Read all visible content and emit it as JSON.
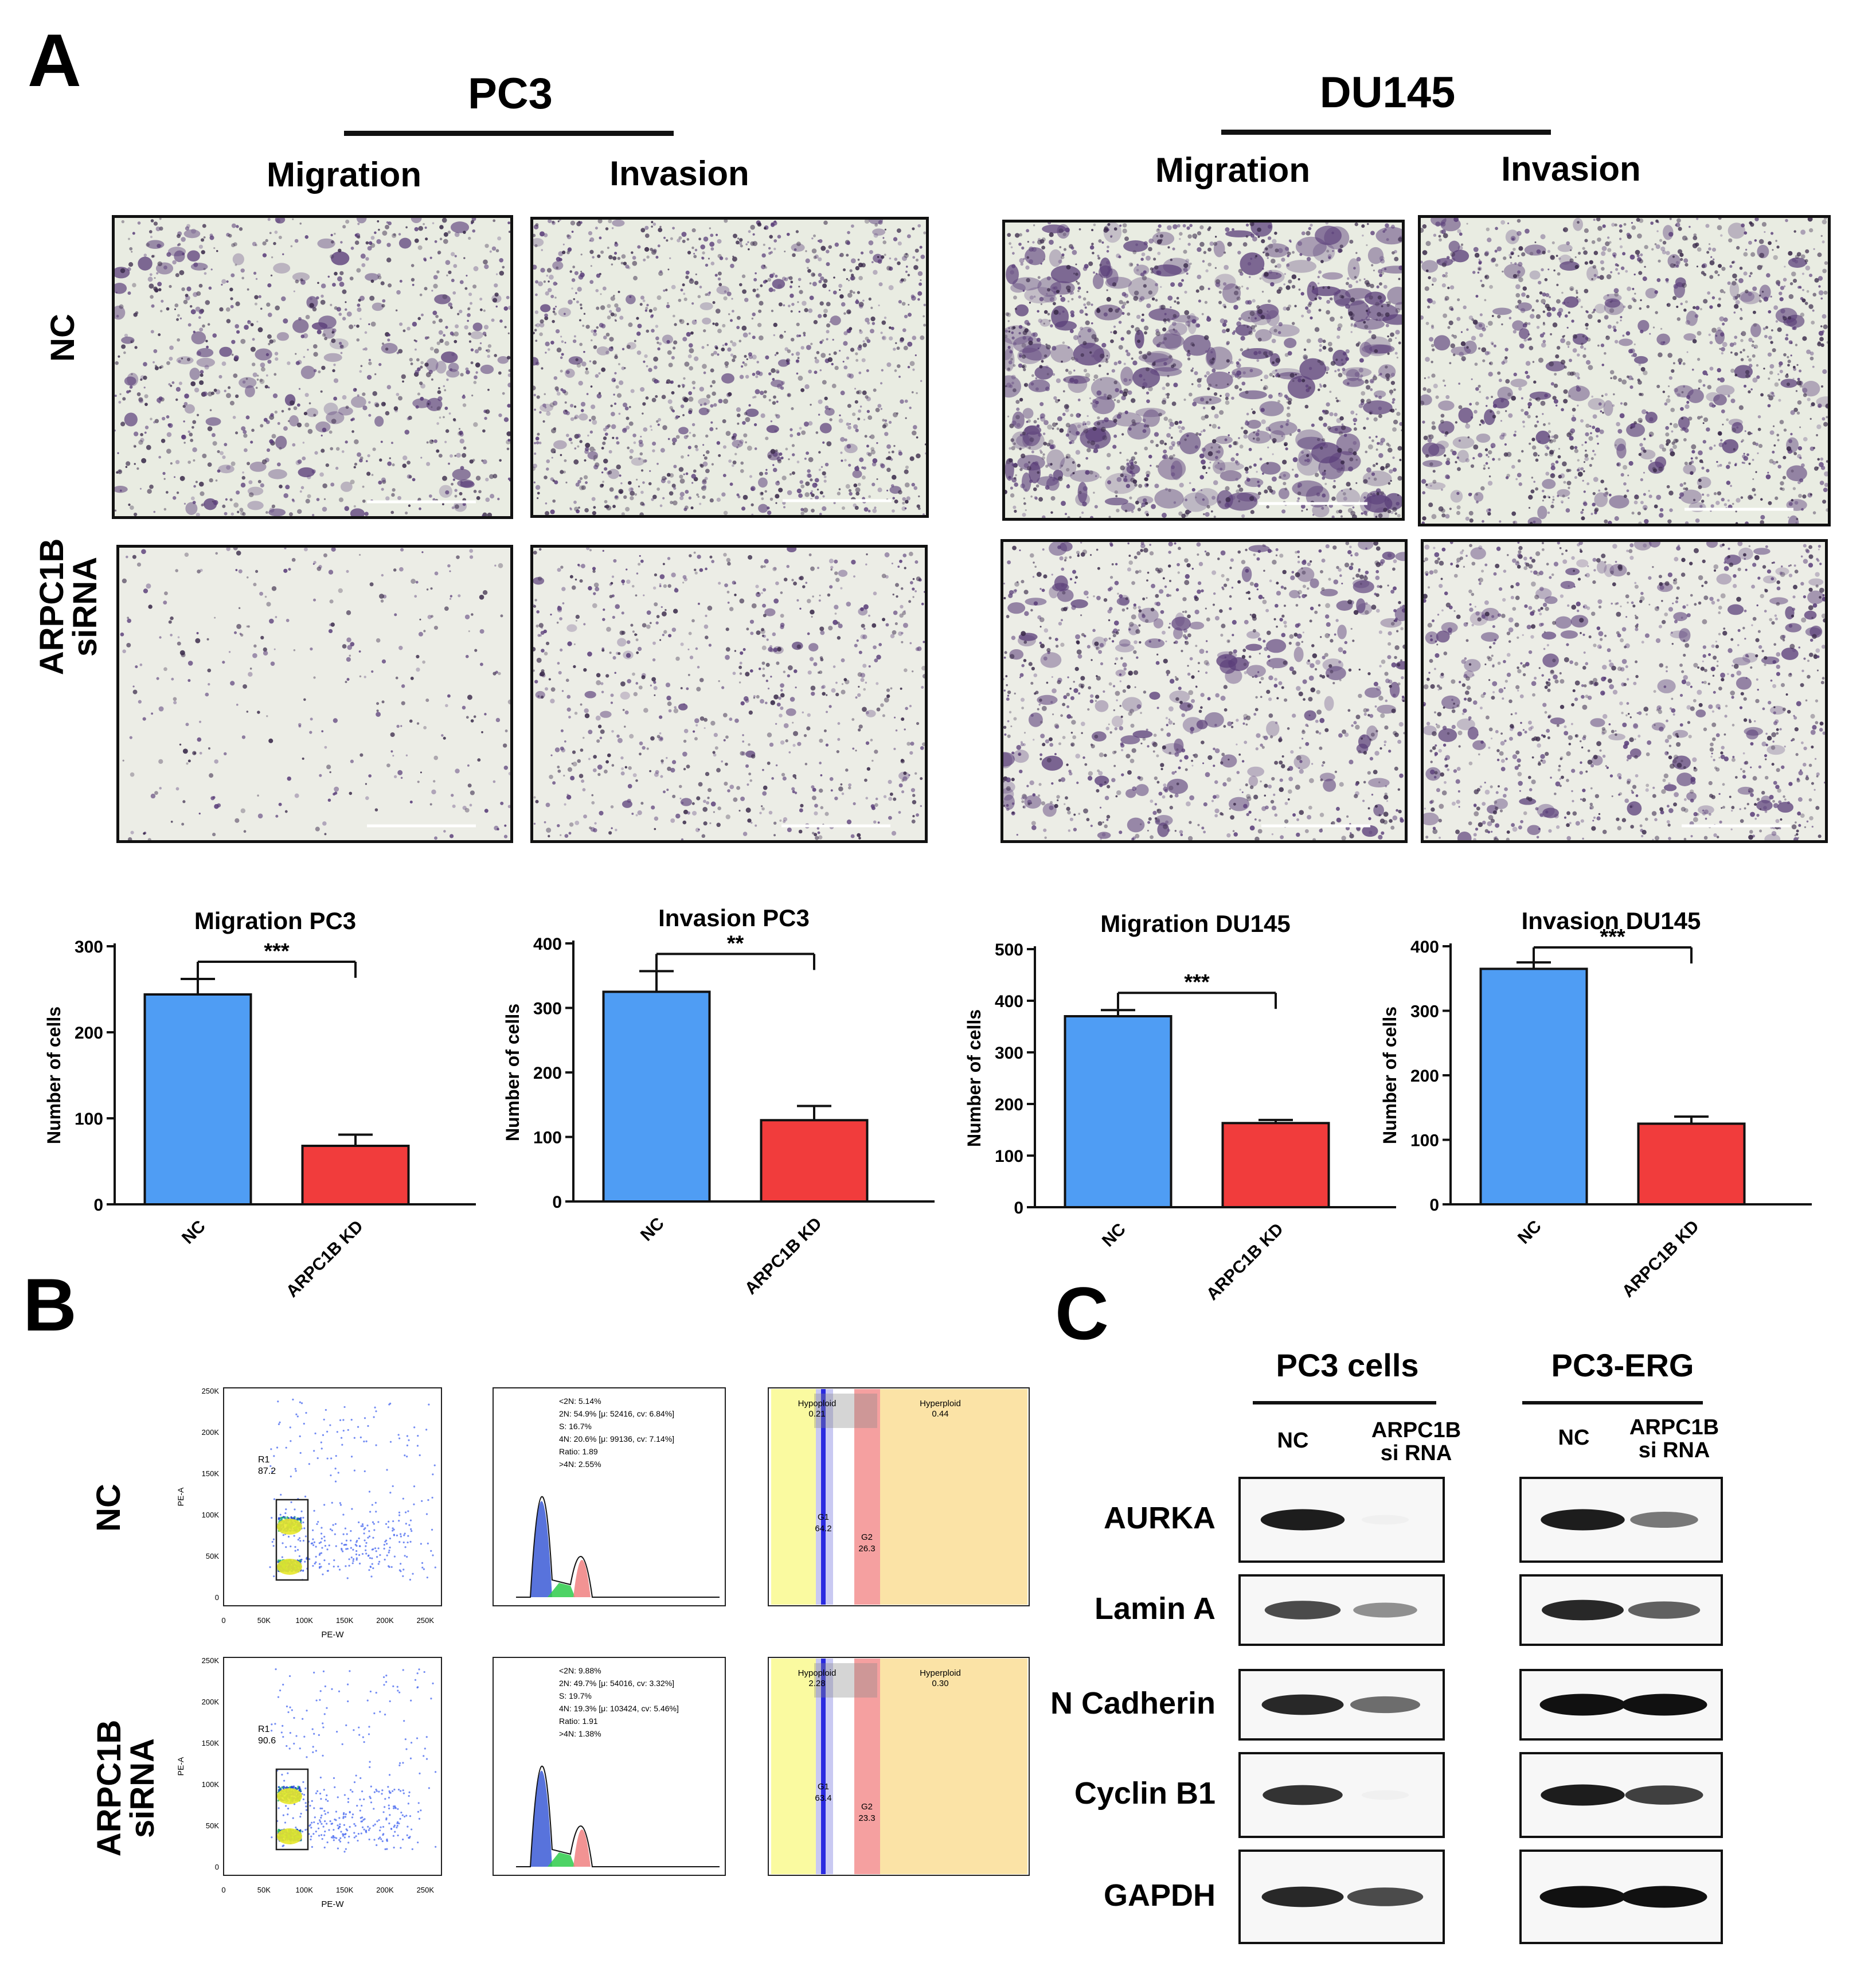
{
  "panel_a": {
    "letter": "A",
    "cell_lines": [
      {
        "name": "PC3",
        "assays": [
          "Migration",
          "Invasion"
        ]
      },
      {
        "name": "DU145",
        "assays": [
          "Migration",
          "Invasion"
        ]
      }
    ],
    "row_labels": [
      "NC",
      "ARPC1B siRNA"
    ],
    "micrographs": [
      {
        "cell_line": "PC3",
        "assay": "Migration",
        "condition": "NC",
        "density": 0.55,
        "clumpy": 0.4
      },
      {
        "cell_line": "PC3",
        "assay": "Invasion",
        "condition": "NC",
        "density": 0.85,
        "clumpy": 0.2
      },
      {
        "cell_line": "DU145",
        "assay": "Migration",
        "condition": "NC",
        "density": 0.9,
        "clumpy": 0.9
      },
      {
        "cell_line": "DU145",
        "assay": "Invasion",
        "condition": "NC",
        "density": 0.85,
        "clumpy": 0.5
      },
      {
        "cell_line": "PC3",
        "assay": "Migration",
        "condition": "ARPC1B siRNA",
        "density": 0.12,
        "clumpy": 0.0
      },
      {
        "cell_line": "PC3",
        "assay": "Invasion",
        "condition": "ARPC1B siRNA",
        "density": 0.45,
        "clumpy": 0.1
      },
      {
        "cell_line": "DU145",
        "assay": "Migration",
        "condition": "ARPC1B siRNA",
        "density": 0.65,
        "clumpy": 0.5
      },
      {
        "cell_line": "DU145",
        "assay": "Invasion",
        "condition": "ARPC1B siRNA",
        "density": 0.7,
        "clumpy": 0.4
      }
    ],
    "stain_color": "#5b3f7a"
  },
  "chart_data": [
    {
      "type": "bar",
      "title": "Migration PC3",
      "ylabel": "Number of cells",
      "xlabel": "",
      "categories": [
        "NC",
        "ARPC1B KD"
      ],
      "values": [
        244,
        68
      ],
      "errors": [
        18,
        13
      ],
      "ylim": [
        0,
        300
      ],
      "yticks": [
        0,
        100,
        200,
        300
      ],
      "significance": "***",
      "colors": [
        "#4f9df4",
        "#f13c3c"
      ]
    },
    {
      "type": "bar",
      "title": "Invasion PC3",
      "ylabel": "Number of cells",
      "xlabel": "",
      "categories": [
        "NC",
        "ARPC1B KD"
      ],
      "values": [
        325,
        126
      ],
      "errors": [
        32,
        22
      ],
      "ylim": [
        0,
        400
      ],
      "yticks": [
        0,
        100,
        200,
        300,
        400
      ],
      "significance": "**",
      "colors": [
        "#4f9df4",
        "#f13c3c"
      ]
    },
    {
      "type": "bar",
      "title": "Migration DU145",
      "ylabel": "Number of cells",
      "xlabel": "",
      "categories": [
        "NC",
        "ARPC1B KD"
      ],
      "values": [
        370,
        163
      ],
      "errors": [
        12,
        6
      ],
      "ylim": [
        0,
        500
      ],
      "yticks": [
        0,
        100,
        200,
        300,
        400,
        500
      ],
      "significance": "***",
      "colors": [
        "#4f9df4",
        "#f13c3c"
      ]
    },
    {
      "type": "bar",
      "title": "Invasion DU145",
      "ylabel": "Number of cells",
      "xlabel": "",
      "categories": [
        "NC",
        "ARPC1B KD"
      ],
      "values": [
        365,
        125
      ],
      "errors": [
        10,
        11
      ],
      "ylim": [
        0,
        400
      ],
      "yticks": [
        0,
        100,
        200,
        300,
        400
      ],
      "significance": "***",
      "colors": [
        "#4f9df4",
        "#f13c3c"
      ]
    }
  ],
  "panel_b": {
    "letter": "B",
    "row_labels": [
      "NC",
      "ARPC1B siRNA"
    ],
    "scatter_y_ticks": [
      "250K",
      "200K",
      "150K",
      "100K",
      "50K",
      "0"
    ],
    "scatter_x_ticks": [
      "0",
      "50K",
      "100K",
      "150K",
      "200K",
      "250K"
    ],
    "scatter_x_label": "PE-W",
    "scatter_y_label": "PE-A",
    "rows": [
      {
        "gate_label": "R1",
        "gate_value": "87.2",
        "histogram_stats": [
          "<2N: 5.14%",
          "2N: 54.9%  [μ: 52416, cv: 6.84%]",
          "S: 16.7%",
          "4N: 20.6%  [μ: 99136, cv: 7.14%]",
          "Ratio: 1.89",
          ">4N: 2.55%"
        ],
        "ploidy": {
          "hypoploid_label": "Hypoploid",
          "hypoploid_value": "0.21",
          "hyperploid_label": "Hyperploid",
          "hyperploid_value": "0.44",
          "g1_label": "G1",
          "g1_value": "64.2",
          "g2_label": "G2",
          "g2_value": "26.3"
        }
      },
      {
        "gate_label": "R1",
        "gate_value": "90.6",
        "histogram_stats": [
          "<2N: 9.88%",
          "2N: 49.7%  [μ: 54016, cv: 3.32%]",
          "S: 19.7%",
          "4N: 19.3%  [μ: 103424, cv: 5.46%]",
          "Ratio: 1.91",
          ">4N: 1.38%"
        ],
        "ploidy": {
          "hypoploid_label": "Hypoploid",
          "hypoploid_value": "2.28",
          "hyperploid_label": "Hyperploid",
          "hyperploid_value": "0.30",
          "g1_label": "G1",
          "g1_value": "63.4",
          "g2_label": "G2",
          "g2_value": "23.3"
        }
      }
    ]
  },
  "panel_c": {
    "letter": "C",
    "groups": [
      {
        "name": "PC3 cells",
        "lanes": [
          "NC",
          "ARPC1B si RNA"
        ]
      },
      {
        "name": "PC3-ERG",
        "lanes": [
          "NC",
          "ARPC1B si RNA"
        ]
      }
    ],
    "proteins": [
      {
        "name": "AURKA",
        "intensities": [
          0.95,
          0.03,
          0.95,
          0.55
        ]
      },
      {
        "name": "Lamin A",
        "intensities": [
          0.75,
          0.45,
          0.9,
          0.65
        ]
      },
      {
        "name": "N Cadherin",
        "intensities": [
          0.9,
          0.6,
          1.0,
          1.0
        ]
      },
      {
        "name": "Cyclin B1",
        "intensities": [
          0.85,
          0.03,
          0.95,
          0.8
        ]
      },
      {
        "name": "GAPDH",
        "intensities": [
          0.9,
          0.75,
          1.0,
          1.0
        ]
      }
    ]
  }
}
